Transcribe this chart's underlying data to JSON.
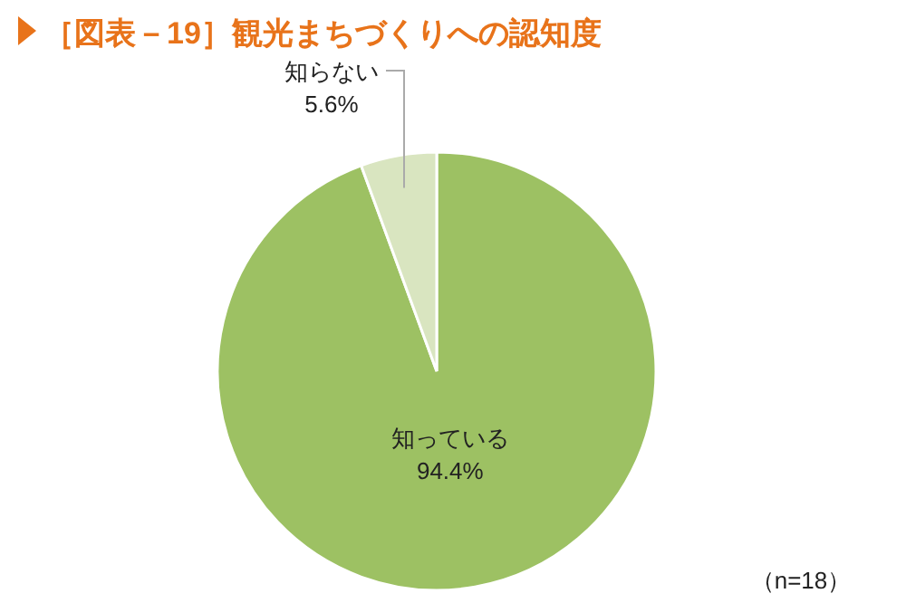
{
  "chart_data": {
    "type": "pie",
    "title": "［図表－19］観光まちづくりへの認知度",
    "categories": [
      "知っている",
      "知らない"
    ],
    "values": [
      94.4,
      5.6
    ],
    "value_labels": [
      "94.4%",
      "5.6%"
    ],
    "colors": [
      "#9dc163",
      "#d9e5c0"
    ],
    "annotations": [
      "（n=18）"
    ]
  }
}
